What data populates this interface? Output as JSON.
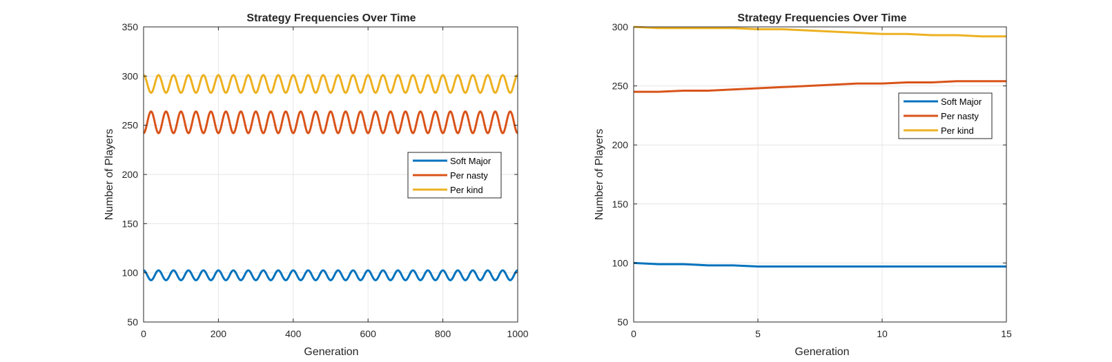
{
  "chart_data": [
    {
      "type": "line",
      "title": "Strategy Frequencies Over Time",
      "xlabel": "Generation",
      "ylabel": "Number of Players",
      "xlim": [
        0,
        1000
      ],
      "ylim": [
        50,
        350
      ],
      "xticks": [
        0,
        200,
        400,
        600,
        800,
        1000
      ],
      "yticks": [
        50,
        100,
        150,
        200,
        250,
        300,
        350
      ],
      "grid": true,
      "legend_position": "right-center",
      "oscillation_cycles": 25,
      "series": [
        {
          "name": "Soft Major",
          "color": "#0072BD",
          "x": [
            0,
            1000
          ],
          "mean": 97.5,
          "amplitude": 5,
          "phase_start": "high"
        },
        {
          "name": "Per nasty",
          "color": "#D95319",
          "x": [
            0,
            1000
          ],
          "mean": 253,
          "amplitude": 11,
          "phase_start": "low"
        },
        {
          "name": "Per kind",
          "color": "#EDB120",
          "x": [
            0,
            1000
          ],
          "mean": 292,
          "amplitude": 9,
          "phase_start": "high"
        }
      ]
    },
    {
      "type": "line",
      "title": "Strategy Frequencies Over Time",
      "xlabel": "Generation",
      "ylabel": "Number of Players",
      "xlim": [
        0,
        15
      ],
      "ylim": [
        50,
        300
      ],
      "xticks": [
        0,
        5,
        10,
        15
      ],
      "yticks": [
        50,
        100,
        150,
        200,
        250,
        300
      ],
      "grid": true,
      "legend_position": "top-right",
      "series": [
        {
          "name": "Soft Major",
          "color": "#0072BD",
          "x": [
            0,
            1,
            2,
            3,
            4,
            5,
            6,
            7,
            8,
            9,
            10,
            11,
            12,
            13,
            14,
            15
          ],
          "values": [
            100,
            99,
            99,
            98,
            98,
            97,
            97,
            97,
            97,
            97,
            97,
            97,
            97,
            97,
            97,
            97
          ]
        },
        {
          "name": "Per nasty",
          "color": "#D95319",
          "x": [
            0,
            1,
            2,
            3,
            4,
            5,
            6,
            7,
            8,
            9,
            10,
            11,
            12,
            13,
            14,
            15
          ],
          "values": [
            245,
            245,
            246,
            246,
            247,
            248,
            249,
            250,
            251,
            252,
            252,
            253,
            253,
            254,
            254,
            254
          ]
        },
        {
          "name": "Per kind",
          "color": "#EDB120",
          "x": [
            0,
            1,
            2,
            3,
            4,
            5,
            6,
            7,
            8,
            9,
            10,
            11,
            12,
            13,
            14,
            15
          ],
          "values": [
            300,
            299,
            299,
            299,
            299,
            298,
            298,
            297,
            296,
            295,
            294,
            294,
            293,
            293,
            292,
            292
          ]
        }
      ]
    }
  ]
}
